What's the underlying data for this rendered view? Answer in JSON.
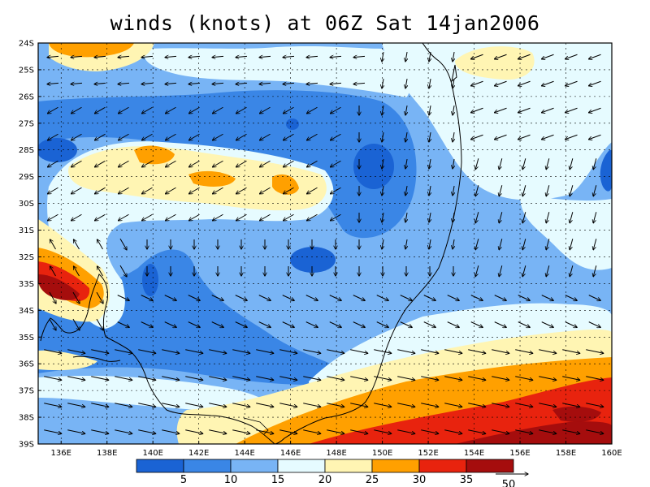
{
  "title": "winds (knots) at 06Z Sat 14jan2006",
  "map": {
    "lat_labels": [
      "24S",
      "25S",
      "26S",
      "27S",
      "28S",
      "29S",
      "30S",
      "31S",
      "32S",
      "33S",
      "34S",
      "35S",
      "36S",
      "37S",
      "38S",
      "39S"
    ],
    "lon_labels": [
      "136E",
      "138E",
      "140E",
      "142E",
      "144E",
      "146E",
      "148E",
      "150E",
      "152E",
      "154E",
      "156E",
      "158E",
      "160E"
    ],
    "lon_range": [
      135,
      160
    ],
    "lat_range": [
      -24,
      -39
    ],
    "grid": "dashed"
  },
  "colorbar": {
    "labels": [
      "5",
      "10",
      "15",
      "20",
      "25",
      "30",
      "35",
      "50"
    ],
    "colors": [
      "#1a63d4",
      "#3a86e6",
      "#78b4f5",
      "#e6fbff",
      "#fff5b3",
      "#ffa000",
      "#e8230e",
      "#a50d0d"
    ]
  }
}
